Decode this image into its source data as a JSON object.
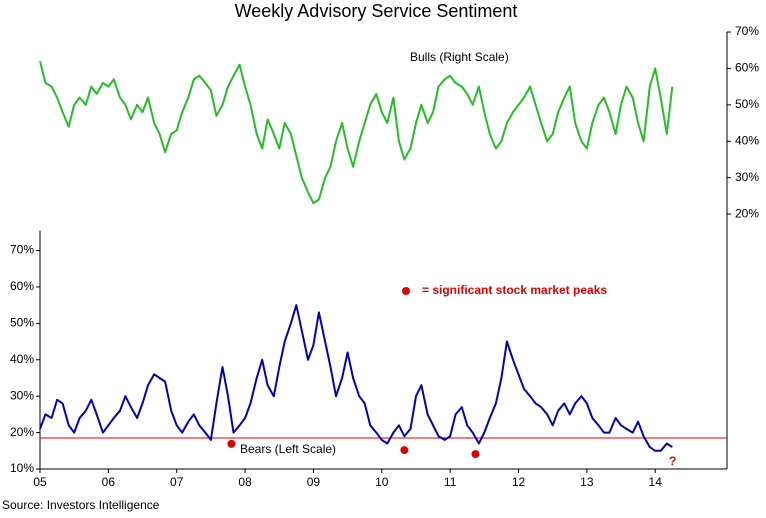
{
  "chart_data": {
    "type": "line",
    "title": "Weekly Advisory Service Sentiment",
    "source": "Source: Investors Intelligence",
    "x": [
      2005.0,
      2005.08,
      2005.17,
      2005.25,
      2005.33,
      2005.42,
      2005.5,
      2005.58,
      2005.67,
      2005.75,
      2005.83,
      2005.92,
      2006.0,
      2006.08,
      2006.17,
      2006.25,
      2006.33,
      2006.42,
      2006.5,
      2006.58,
      2006.67,
      2006.75,
      2006.83,
      2006.92,
      2007.0,
      2007.08,
      2007.17,
      2007.25,
      2007.33,
      2007.42,
      2007.5,
      2007.58,
      2007.67,
      2007.75,
      2007.83,
      2007.92,
      2008.0,
      2008.08,
      2008.17,
      2008.25,
      2008.33,
      2008.42,
      2008.5,
      2008.58,
      2008.67,
      2008.75,
      2008.83,
      2008.92,
      2009.0,
      2009.08,
      2009.17,
      2009.25,
      2009.33,
      2009.42,
      2009.5,
      2009.58,
      2009.67,
      2009.75,
      2009.83,
      2009.92,
      2010.0,
      2010.08,
      2010.17,
      2010.25,
      2010.33,
      2010.42,
      2010.5,
      2010.58,
      2010.67,
      2010.75,
      2010.83,
      2010.92,
      2011.0,
      2011.08,
      2011.17,
      2011.25,
      2011.33,
      2011.42,
      2011.5,
      2011.58,
      2011.67,
      2011.75,
      2011.83,
      2011.92,
      2012.0,
      2012.08,
      2012.17,
      2012.25,
      2012.33,
      2012.42,
      2012.5,
      2012.58,
      2012.67,
      2012.75,
      2012.83,
      2012.92,
      2013.0,
      2013.08,
      2013.17,
      2013.25,
      2013.33,
      2013.42,
      2013.5,
      2013.58,
      2013.67,
      2013.75,
      2013.83,
      2013.92,
      2014.0,
      2014.08,
      2014.17,
      2014.25
    ],
    "series": [
      {
        "name": "Bulls (Right Scale)",
        "color": "#22c022",
        "axis": "y2",
        "values": [
          62,
          56,
          55,
          52,
          48,
          44,
          50,
          52,
          50,
          55,
          53,
          56,
          55,
          57,
          52,
          50,
          46,
          50,
          48,
          52,
          45,
          42,
          37,
          42,
          43,
          48,
          52,
          57,
          58,
          56,
          54,
          47,
          50,
          55,
          58,
          61,
          55,
          50,
          42,
          38,
          46,
          42,
          38,
          45,
          42,
          36,
          30,
          26,
          23,
          24,
          30,
          33,
          40,
          45,
          38,
          33,
          40,
          45,
          50,
          53,
          48,
          45,
          52,
          40,
          35,
          38,
          45,
          50,
          45,
          48,
          55,
          57,
          58,
          56,
          55,
          53,
          50,
          55,
          48,
          42,
          38,
          40,
          45,
          48,
          50,
          52,
          55,
          50,
          45,
          40,
          42,
          48,
          52,
          55,
          45,
          40,
          38,
          45,
          50,
          52,
          48,
          42,
          50,
          55,
          52,
          45,
          40,
          55,
          60,
          52,
          42,
          55
        ]
      },
      {
        "name": "Bears (Left Scale)",
        "color": "#0000c0",
        "values": [
          21,
          25,
          24,
          29,
          28,
          22,
          20,
          24,
          26,
          29,
          25,
          20,
          22,
          24,
          26,
          30,
          27,
          24,
          28,
          33,
          36,
          35,
          34,
          26,
          22,
          20,
          23,
          25,
          22,
          20,
          18,
          28,
          38,
          30,
          20,
          22,
          24,
          28,
          35,
          40,
          33,
          30,
          38,
          45,
          50,
          55,
          48,
          40,
          44,
          53,
          45,
          38,
          30,
          35,
          42,
          35,
          30,
          28,
          22,
          20,
          18,
          17,
          20,
          22,
          19,
          21,
          30,
          33,
          25,
          22,
          19,
          18,
          19,
          25,
          27,
          22,
          20,
          17,
          20,
          24,
          28,
          35,
          45,
          40,
          36,
          32,
          30,
          28,
          27,
          25,
          22,
          26,
          28,
          25,
          28,
          30,
          28,
          24,
          22,
          20,
          20,
          24,
          22,
          21,
          20,
          23,
          19,
          16,
          15,
          15,
          17,
          16
        ]
      }
    ],
    "reference_line": {
      "value": 18.5,
      "color": "#e00000"
    },
    "peaks": {
      "label": "= significant stock market peaks",
      "color": "#e00000",
      "x": [
        2007.8,
        2010.33,
        2011.37
      ],
      "values": [
        16.9,
        15.2,
        14.1
      ]
    },
    "annotation": "?",
    "xlim": [
      2005,
      2015.05
    ],
    "xticks": [
      {
        "value": 2005,
        "label": "05"
      },
      {
        "value": 2006,
        "label": "06"
      },
      {
        "value": 2007,
        "label": "07"
      },
      {
        "value": 2008,
        "label": "08"
      },
      {
        "value": 2009,
        "label": "09"
      },
      {
        "value": 2010,
        "label": "10"
      },
      {
        "value": 2011,
        "label": "11"
      },
      {
        "value": 2012,
        "label": "12"
      },
      {
        "value": 2013,
        "label": "13"
      },
      {
        "value": 2014,
        "label": "14"
      }
    ],
    "ylim": [
      10,
      130
    ],
    "yticks": [
      {
        "value": 10,
        "label": "10%"
      },
      {
        "value": 20,
        "label": "20%"
      },
      {
        "value": 30,
        "label": "30%"
      },
      {
        "value": 40,
        "label": "40%"
      },
      {
        "value": 50,
        "label": "50%"
      },
      {
        "value": 60,
        "label": "60%"
      },
      {
        "value": 70,
        "label": "70%"
      }
    ],
    "y2lim": [
      -50,
      70
    ],
    "y2ticks": [
      {
        "value": 20,
        "label": "20%"
      },
      {
        "value": 30,
        "label": "30%"
      },
      {
        "value": 40,
        "label": "40%"
      },
      {
        "value": 50,
        "label": "50%"
      },
      {
        "value": 60,
        "label": "60%"
      },
      {
        "value": 70,
        "label": "70%"
      }
    ]
  }
}
